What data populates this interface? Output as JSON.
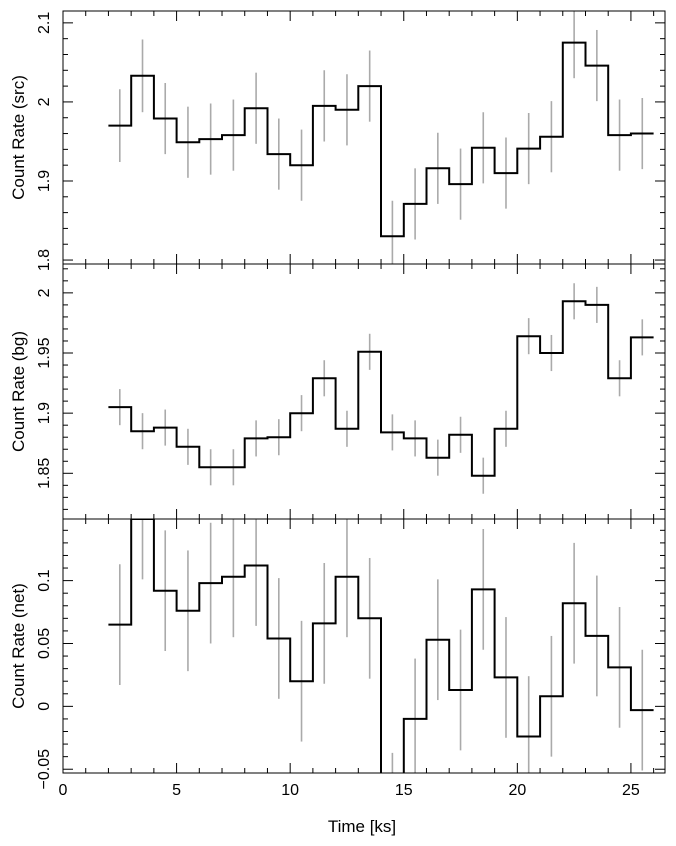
{
  "chart_data": [
    {
      "type": "line",
      "ylabel": "Count Rate (src)",
      "ylim": [
        1.795,
        2.115
      ],
      "yticks": [
        1.8,
        1.9,
        2,
        2.1
      ],
      "ytick_labels": [
        "1.8",
        "1.9",
        "2",
        "2.1"
      ],
      "x": [
        2.5,
        3.5,
        4.5,
        5.5,
        6.5,
        7.5,
        8.5,
        9.5,
        10.5,
        11.5,
        12.5,
        13.5,
        14.5,
        15.5,
        16.5,
        17.5,
        18.5,
        19.5,
        20.5,
        21.5,
        22.5,
        23.5,
        24.5,
        25.5
      ],
      "series": [
        {
          "values": [
            1.97,
            2.033,
            1.979,
            1.949,
            1.953,
            1.958,
            1.992,
            1.934,
            1.92,
            1.995,
            1.99,
            2.02,
            1.83,
            1.871,
            1.916,
            1.896,
            1.942,
            1.91,
            1.941,
            1.956,
            2.075,
            2.046,
            1.958,
            1.96
          ],
          "errors": [
            0.046,
            0.046,
            0.045,
            0.045,
            0.045,
            0.045,
            0.045,
            0.045,
            0.045,
            0.045,
            0.045,
            0.045,
            0.045,
            0.045,
            0.045,
            0.045,
            0.045,
            0.045,
            0.045,
            0.045,
            0.045,
            0.045,
            0.045,
            0.045
          ]
        }
      ]
    },
    {
      "type": "line",
      "ylabel": "Count Rate (bg)",
      "ylim": [
        1.812,
        2.024
      ],
      "yticks": [
        1.85,
        1.9,
        1.95,
        2
      ],
      "ytick_labels": [
        "1.85",
        "1.9",
        "1.95",
        "2"
      ],
      "x": [
        2.5,
        3.5,
        4.5,
        5.5,
        6.5,
        7.5,
        8.5,
        9.5,
        10.5,
        11.5,
        12.5,
        13.5,
        14.5,
        15.5,
        16.5,
        17.5,
        18.5,
        19.5,
        20.5,
        21.5,
        22.5,
        23.5,
        24.5,
        25.5
      ],
      "series": [
        {
          "values": [
            1.905,
            1.885,
            1.888,
            1.872,
            1.855,
            1.855,
            1.879,
            1.88,
            1.9,
            1.929,
            1.887,
            1.951,
            1.884,
            1.879,
            1.863,
            1.882,
            1.848,
            1.887,
            1.964,
            1.95,
            1.993,
            1.99,
            1.929,
            1.963
          ],
          "errors": [
            0.015,
            0.015,
            0.015,
            0.015,
            0.015,
            0.015,
            0.015,
            0.015,
            0.015,
            0.015,
            0.015,
            0.015,
            0.015,
            0.015,
            0.015,
            0.015,
            0.015,
            0.015,
            0.015,
            0.015,
            0.015,
            0.015,
            0.015,
            0.015
          ]
        }
      ]
    },
    {
      "type": "line",
      "ylabel": "Count Rate (net)",
      "xlabel": "Time [ks]",
      "xlim": [
        0,
        26.5
      ],
      "xticks": [
        0,
        5,
        10,
        15,
        20,
        25
      ],
      "xtick_labels": [
        "0",
        "5",
        "10",
        "15",
        "20",
        "25"
      ],
      "ylim": [
        -0.053,
        0.149
      ],
      "yticks": [
        -0.05,
        0,
        0.05,
        0.1
      ],
      "ytick_labels": [
        "−0.05",
        "0",
        "0.05",
        "0.1"
      ],
      "x": [
        2.5,
        3.5,
        4.5,
        5.5,
        6.5,
        7.5,
        8.5,
        9.5,
        10.5,
        11.5,
        12.5,
        13.5,
        14.5,
        15.5,
        16.5,
        17.5,
        18.5,
        19.5,
        20.5,
        21.5,
        22.5,
        23.5,
        24.5,
        25.5
      ],
      "series": [
        {
          "values": [
            0.065,
            0.149,
            0.092,
            0.076,
            0.098,
            0.103,
            0.112,
            0.054,
            0.02,
            0.066,
            0.103,
            0.07,
            -0.085,
            -0.01,
            0.053,
            0.013,
            0.093,
            0.023,
            -0.024,
            0.008,
            0.082,
            0.056,
            0.031,
            -0.003
          ],
          "errors": [
            0.048,
            0.048,
            0.048,
            0.048,
            0.048,
            0.048,
            0.048,
            0.048,
            0.048,
            0.048,
            0.048,
            0.048,
            0.048,
            0.048,
            0.048,
            0.048,
            0.048,
            0.048,
            0.048,
            0.048,
            0.048,
            0.048,
            0.048,
            0.048
          ]
        }
      ]
    }
  ],
  "colors": {
    "step_line": "#000000",
    "error_bar": "#aaaaaa",
    "axis": "#000000"
  }
}
